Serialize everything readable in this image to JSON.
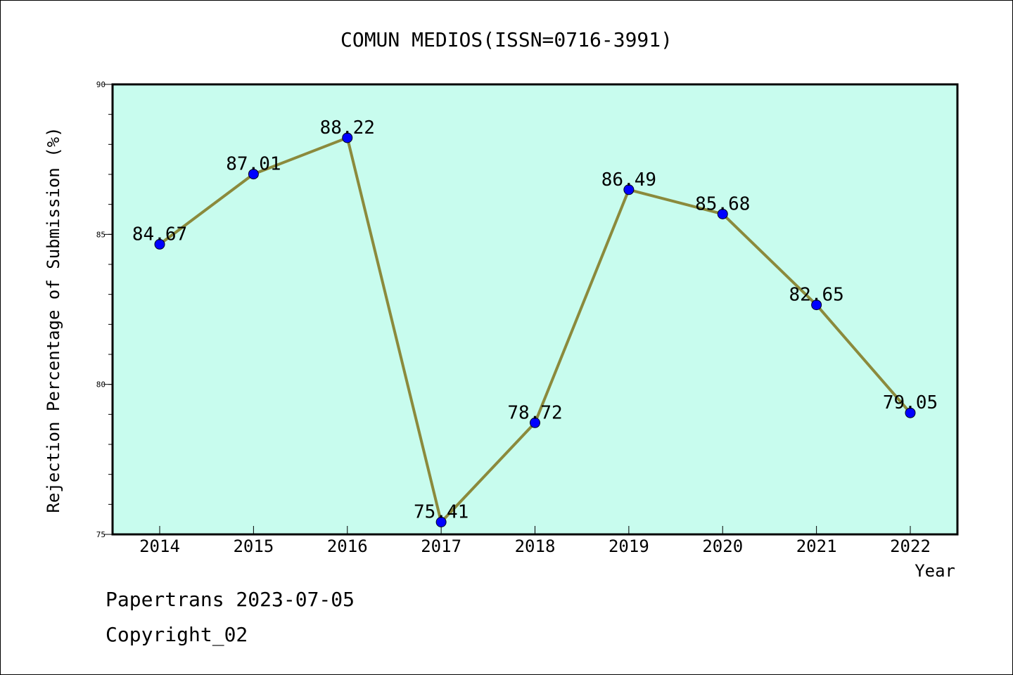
{
  "chart_data": {
    "type": "line",
    "title": "COMUN MEDIOS(ISSN=0716-3991)",
    "xlabel": "Year",
    "ylabel": "Rejection Percentage of Submission (%)",
    "categories": [
      "2014",
      "2015",
      "2016",
      "2017",
      "2018",
      "2019",
      "2020",
      "2021",
      "2022"
    ],
    "values": [
      84.67,
      87.01,
      88.22,
      75.41,
      78.72,
      86.49,
      85.68,
      82.65,
      79.05
    ],
    "data_labels": [
      "84.67",
      "87.01",
      "88.22",
      "75.41",
      "78.72",
      "86.49",
      "85.68",
      "82.65",
      "79.05"
    ],
    "ylim": [
      75,
      90
    ],
    "yticks": [
      "75",
      "80",
      "85",
      "90"
    ],
    "grid": false,
    "colors": {
      "plot_background": "#c8fcee",
      "line": "#8b8a3c",
      "marker": "#0000ff"
    }
  },
  "footer": {
    "line1": "Papertrans 2023-07-05",
    "line2": "Copyright_02"
  }
}
